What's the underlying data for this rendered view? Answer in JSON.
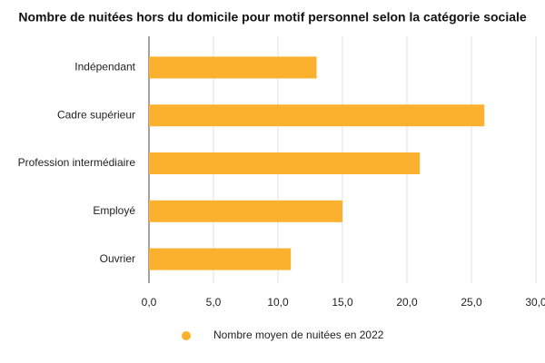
{
  "chart_data": {
    "type": "bar",
    "orientation": "horizontal",
    "title": "Nombre de nuitées hors du domicile pour motif personnel selon la catégorie sociale",
    "categories": [
      "Indépendant",
      "Cadre supérieur",
      "Profession intermédiaire",
      "Employé",
      "Ouvrier"
    ],
    "series": [
      {
        "name": "Nombre moyen de nuitées en 2022",
        "color": "#fbb12d",
        "values": [
          13,
          26,
          21,
          15,
          11
        ]
      }
    ],
    "xlim": [
      0,
      30
    ],
    "xticks": [
      {
        "value": 0,
        "label": "0,0"
      },
      {
        "value": 5,
        "label": "5,0"
      },
      {
        "value": 10,
        "label": "10,0"
      },
      {
        "value": 15,
        "label": "15,0"
      },
      {
        "value": 20,
        "label": "20,0"
      },
      {
        "value": 25,
        "label": "25,0"
      },
      {
        "value": 30,
        "label": "30,0"
      }
    ],
    "grid": true,
    "legend": "bottom"
  }
}
